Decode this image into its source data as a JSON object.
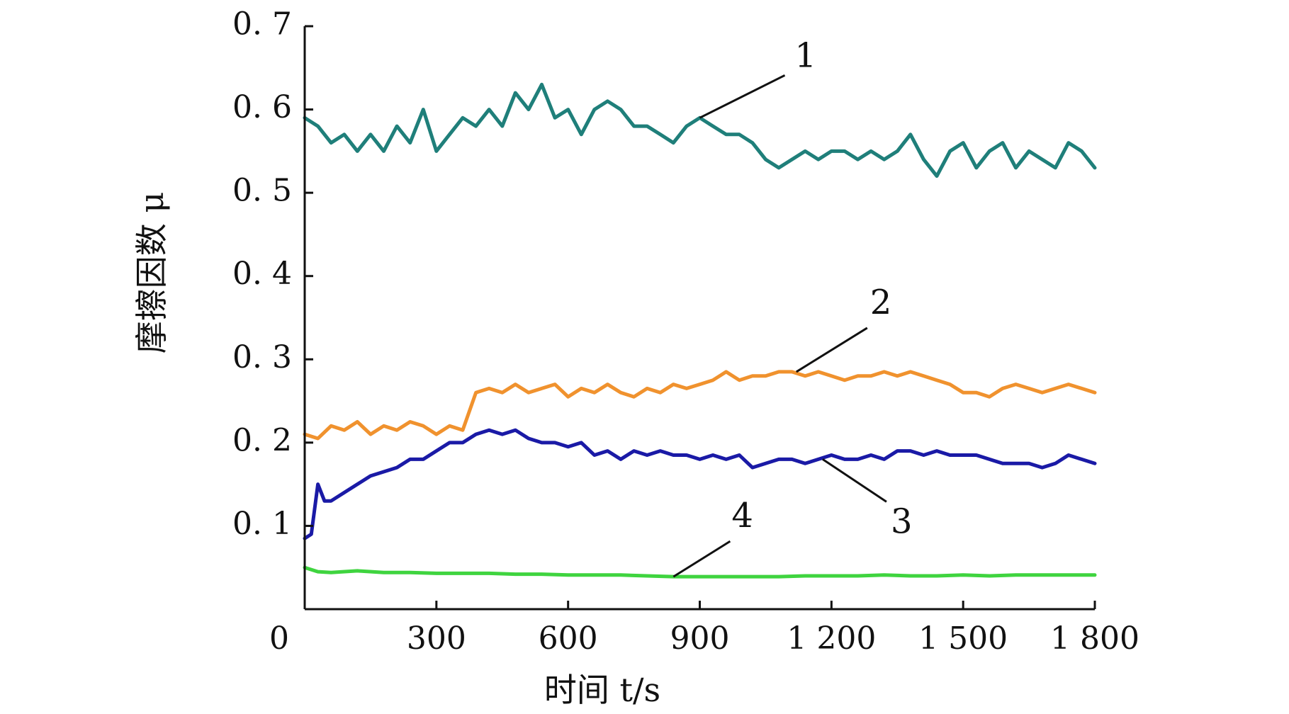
{
  "chart_data": {
    "type": "line",
    "title": "",
    "xlabel": "时间 t/s",
    "ylabel": "摩擦因数 μ",
    "xlim": [
      0,
      1800
    ],
    "ylim": [
      0,
      0.7
    ],
    "x_ticks": [
      0,
      300,
      600,
      900,
      1200,
      1500,
      1800
    ],
    "x_tick_labels": [
      "0",
      "300",
      "600",
      "900",
      "1 200",
      "1 500",
      "1 800"
    ],
    "y_ticks": [
      0.1,
      0.2,
      0.3,
      0.4,
      0.5,
      0.6,
      0.7
    ],
    "y_tick_labels": [
      "0. 1",
      "0. 2",
      "0. 3",
      "0. 4",
      "0. 5",
      "0. 6",
      "0. 7"
    ],
    "grid": false,
    "legend": "none (curves identified by numbered callouts)",
    "series": [
      {
        "label": "1",
        "color": "#1f7f7a",
        "x": [
          0,
          30,
          60,
          90,
          120,
          150,
          180,
          210,
          240,
          270,
          300,
          330,
          360,
          390,
          420,
          450,
          480,
          510,
          540,
          570,
          600,
          630,
          660,
          690,
          720,
          750,
          780,
          810,
          840,
          870,
          900,
          930,
          960,
          990,
          1020,
          1050,
          1080,
          1110,
          1140,
          1170,
          1200,
          1230,
          1260,
          1290,
          1320,
          1350,
          1380,
          1410,
          1440,
          1470,
          1500,
          1530,
          1560,
          1590,
          1620,
          1650,
          1680,
          1710,
          1740,
          1770,
          1800
        ],
        "y": [
          0.59,
          0.58,
          0.56,
          0.57,
          0.55,
          0.57,
          0.55,
          0.58,
          0.56,
          0.6,
          0.55,
          0.57,
          0.59,
          0.58,
          0.6,
          0.58,
          0.62,
          0.6,
          0.63,
          0.59,
          0.6,
          0.57,
          0.6,
          0.61,
          0.6,
          0.58,
          0.58,
          0.57,
          0.56,
          0.58,
          0.59,
          0.58,
          0.57,
          0.57,
          0.56,
          0.54,
          0.53,
          0.54,
          0.55,
          0.54,
          0.55,
          0.55,
          0.54,
          0.55,
          0.54,
          0.55,
          0.57,
          0.54,
          0.52,
          0.55,
          0.56,
          0.53,
          0.55,
          0.56,
          0.53,
          0.55,
          0.54,
          0.53,
          0.56,
          0.55,
          0.53
        ]
      },
      {
        "label": "2",
        "color": "#f0922e",
        "x": [
          0,
          30,
          60,
          90,
          120,
          150,
          180,
          210,
          240,
          270,
          300,
          330,
          360,
          390,
          420,
          450,
          480,
          510,
          540,
          570,
          600,
          630,
          660,
          690,
          720,
          750,
          780,
          810,
          840,
          870,
          900,
          930,
          960,
          990,
          1020,
          1050,
          1080,
          1110,
          1140,
          1170,
          1200,
          1230,
          1260,
          1290,
          1320,
          1350,
          1380,
          1410,
          1440,
          1470,
          1500,
          1530,
          1560,
          1590,
          1620,
          1650,
          1680,
          1710,
          1740,
          1770,
          1800
        ],
        "y": [
          0.21,
          0.205,
          0.22,
          0.215,
          0.225,
          0.21,
          0.22,
          0.215,
          0.225,
          0.22,
          0.21,
          0.22,
          0.215,
          0.26,
          0.265,
          0.26,
          0.27,
          0.26,
          0.265,
          0.27,
          0.255,
          0.265,
          0.26,
          0.27,
          0.26,
          0.255,
          0.265,
          0.26,
          0.27,
          0.265,
          0.27,
          0.275,
          0.285,
          0.275,
          0.28,
          0.28,
          0.285,
          0.285,
          0.28,
          0.285,
          0.28,
          0.275,
          0.28,
          0.28,
          0.285,
          0.28,
          0.285,
          0.28,
          0.275,
          0.27,
          0.26,
          0.26,
          0.255,
          0.265,
          0.27,
          0.265,
          0.26,
          0.265,
          0.27,
          0.265,
          0.26
        ]
      },
      {
        "label": "3",
        "color": "#1a1aa6",
        "x": [
          0,
          15,
          30,
          45,
          60,
          90,
          120,
          150,
          180,
          210,
          240,
          270,
          300,
          330,
          360,
          390,
          420,
          450,
          480,
          510,
          540,
          570,
          600,
          630,
          660,
          690,
          720,
          750,
          780,
          810,
          840,
          870,
          900,
          930,
          960,
          990,
          1020,
          1050,
          1080,
          1110,
          1140,
          1170,
          1200,
          1230,
          1260,
          1290,
          1320,
          1350,
          1380,
          1410,
          1440,
          1470,
          1500,
          1530,
          1560,
          1590,
          1620,
          1650,
          1680,
          1710,
          1740,
          1770,
          1800
        ],
        "y": [
          0.085,
          0.09,
          0.15,
          0.13,
          0.13,
          0.14,
          0.15,
          0.16,
          0.165,
          0.17,
          0.18,
          0.18,
          0.19,
          0.2,
          0.2,
          0.21,
          0.215,
          0.21,
          0.215,
          0.205,
          0.2,
          0.2,
          0.195,
          0.2,
          0.185,
          0.19,
          0.18,
          0.19,
          0.185,
          0.19,
          0.185,
          0.185,
          0.18,
          0.185,
          0.18,
          0.185,
          0.17,
          0.175,
          0.18,
          0.18,
          0.175,
          0.18,
          0.185,
          0.18,
          0.18,
          0.185,
          0.18,
          0.19,
          0.19,
          0.185,
          0.19,
          0.185,
          0.185,
          0.185,
          0.18,
          0.175,
          0.175,
          0.175,
          0.17,
          0.175,
          0.185,
          0.18,
          0.175
        ]
      },
      {
        "label": "4",
        "color": "#3fd43f",
        "x": [
          0,
          30,
          60,
          120,
          180,
          240,
          300,
          360,
          420,
          480,
          540,
          600,
          660,
          720,
          780,
          840,
          900,
          960,
          1020,
          1080,
          1140,
          1200,
          1260,
          1320,
          1380,
          1440,
          1500,
          1560,
          1620,
          1680,
          1740,
          1800
        ],
        "y": [
          0.05,
          0.045,
          0.044,
          0.046,
          0.044,
          0.044,
          0.043,
          0.043,
          0.043,
          0.042,
          0.042,
          0.041,
          0.041,
          0.041,
          0.04,
          0.039,
          0.039,
          0.039,
          0.039,
          0.039,
          0.04,
          0.04,
          0.04,
          0.041,
          0.04,
          0.04,
          0.041,
          0.04,
          0.041,
          0.041,
          0.041,
          0.041
        ]
      }
    ],
    "annotations": [
      {
        "text": "1",
        "series": "1",
        "point": [
          900,
          0.59
        ]
      },
      {
        "text": "2",
        "series": "2",
        "point": [
          1120,
          0.285
        ]
      },
      {
        "text": "3",
        "series": "3",
        "point": [
          1180,
          0.18
        ]
      },
      {
        "text": "4",
        "series": "4",
        "point": [
          840,
          0.039
        ]
      }
    ]
  }
}
